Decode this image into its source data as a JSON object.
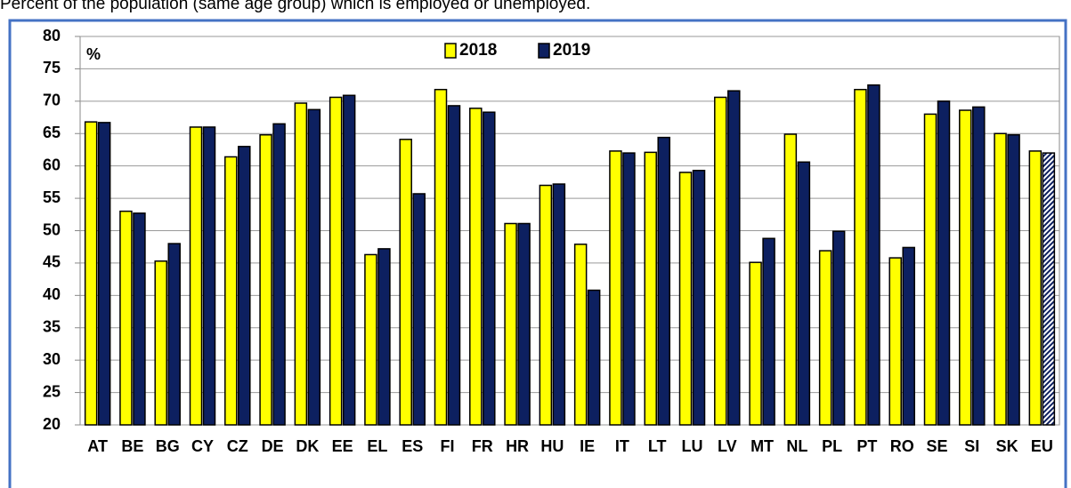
{
  "chart_data": {
    "type": "bar",
    "title": "Percent of the population (same age group) which is employed or unemployed.",
    "y_unit_label": "%",
    "categories": [
      "AT",
      "BE",
      "BG",
      "CY",
      "CZ",
      "DE",
      "DK",
      "EE",
      "EL",
      "ES",
      "FI",
      "FR",
      "HR",
      "HU",
      "IE",
      "IT",
      "LT",
      "LU",
      "LV",
      "MT",
      "NL",
      "PL",
      "PT",
      "RO",
      "SE",
      "SI",
      "SK",
      "EU"
    ],
    "series": [
      {
        "name": "2018",
        "color": "#ffff00",
        "values": [
          66.8,
          53.0,
          45.3,
          66.0,
          61.4,
          64.8,
          69.7,
          70.6,
          46.3,
          64.1,
          71.8,
          68.9,
          51.1,
          57.0,
          47.9,
          62.3,
          62.1,
          59.0,
          70.6,
          45.1,
          64.9,
          46.9,
          71.8,
          45.8,
          68.0,
          68.6,
          65.0,
          62.3
        ]
      },
      {
        "name": "2019",
        "color": "#0d2060",
        "values": [
          66.7,
          52.7,
          48.0,
          66.0,
          63.0,
          66.5,
          68.7,
          70.9,
          47.2,
          55.7,
          69.3,
          68.3,
          51.1,
          57.2,
          40.8,
          62.0,
          64.4,
          59.3,
          71.6,
          48.8,
          60.6,
          49.9,
          72.5,
          47.4,
          70.0,
          69.1,
          64.8,
          62.0
        ]
      }
    ],
    "ylim": [
      20,
      80
    ],
    "yticks": [
      20,
      25,
      30,
      35,
      40,
      45,
      50,
      55,
      60,
      65,
      70,
      75,
      80
    ],
    "grid": true
  }
}
